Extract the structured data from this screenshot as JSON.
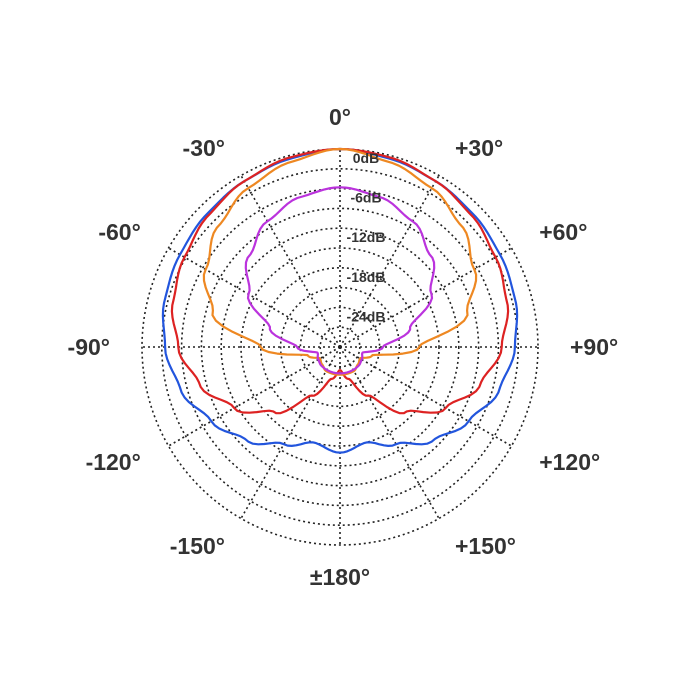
{
  "chart_data": {
    "type": "polar",
    "title": "",
    "radial_unit": "dB",
    "radial_range": [
      -30,
      0
    ],
    "radial_ticks": [
      {
        "value": 0,
        "label": "0dB"
      },
      {
        "value": -6,
        "label": "-6dB"
      },
      {
        "value": -12,
        "label": "-12dB"
      },
      {
        "value": -18,
        "label": "-18dB"
      },
      {
        "value": -24,
        "label": "-24dB"
      }
    ],
    "grid_ring_step_db": 3,
    "angle_ticks": [
      {
        "angle": 0,
        "label": "0°"
      },
      {
        "angle": 30,
        "label": "+30°"
      },
      {
        "angle": 60,
        "label": "+60°"
      },
      {
        "angle": 90,
        "label": "+90°"
      },
      {
        "angle": 120,
        "label": "+120°"
      },
      {
        "angle": 150,
        "label": "+150°"
      },
      {
        "angle": 180,
        "label": "±180°"
      },
      {
        "angle": -150,
        "label": "-150°"
      },
      {
        "angle": -120,
        "label": "-120°"
      },
      {
        "angle": -90,
        "label": "-90°"
      },
      {
        "angle": -60,
        "label": "-60°"
      },
      {
        "angle": -30,
        "label": "-30°"
      }
    ],
    "grid": true,
    "legend": "none",
    "angles": [
      0,
      15,
      30,
      45,
      60,
      75,
      90,
      105,
      120,
      135,
      150,
      165,
      180
    ],
    "series": [
      {
        "color": "#2255dd",
        "values": [
          0,
          -0.5,
          -1.0,
          -1.5,
          -2.0,
          -2.5,
          -3.5,
          -5.0,
          -7.5,
          -10.0,
          -13.0,
          -15.0,
          -14.0
        ]
      },
      {
        "color": "#dd2222",
        "values": [
          0,
          -0.3,
          -1.0,
          -1.8,
          -2.8,
          -3.8,
          -5.5,
          -8.0,
          -11.5,
          -16.0,
          -21.5,
          -25.0,
          -26.5
        ]
      },
      {
        "color": "#ee8822",
        "values": [
          0,
          -1.0,
          -2.2,
          -4.0,
          -6.5,
          -10.0,
          -18.0,
          -25.0,
          -26.5,
          -26.2,
          -25.8,
          -25.8,
          -25.8
        ]
      },
      {
        "color": "#bb33dd",
        "values": [
          -5.8,
          -6.5,
          -8.0,
          -10.5,
          -14.0,
          -19.0,
          -23.5,
          -26.5,
          -26.2,
          -26.0,
          -26.0,
          -26.0,
          -26.0
        ]
      }
    ]
  }
}
